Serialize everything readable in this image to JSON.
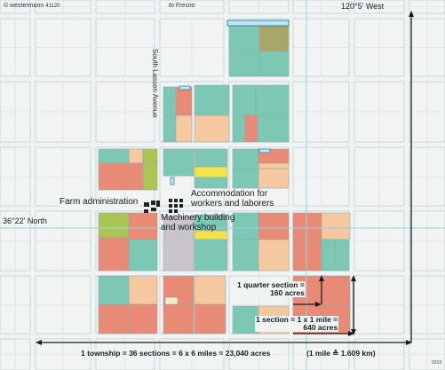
{
  "publisher": {
    "copyright": "© westermann",
    "map_id": "41120",
    "code": "0918"
  },
  "road_labels": {
    "to_fresno": "to Fresno",
    "avenue": "South Lassen Avenue"
  },
  "coordinates": {
    "longitude": "120°5' West",
    "latitude": "36°22' North"
  },
  "features": {
    "farm_administration": "Farm administration",
    "accommodation_line1": "Accommodation for",
    "accommodation_line2": "workers and laborers",
    "machinery_line1": "Machinery building",
    "machinery_line2": "and workshop"
  },
  "scale_notes": {
    "quarter_line1": "1 quarter section =",
    "quarter_line2": "160 acres",
    "section_line1": "1 section = 1 x 1 mile =",
    "section_line2": "640 acres",
    "township": "1 township = 36 sections = 6 x 6 miles = 23,040 acres",
    "mile": "(1 mile ≙ 1.609 km)"
  },
  "colors": {
    "background": "#eef3f4",
    "road": "#ffffff",
    "parcel_border": "#9aa5a7",
    "teal": "#7cc8b4",
    "salmon": "#e98a76",
    "peach": "#f6c8a0",
    "green": "#a9c654",
    "olive": "#a8a66a",
    "yellow": "#f3e34a",
    "gray": "#c9c3cc",
    "water": "#bfe6f3",
    "grid_line": "#8fd6dd",
    "arrow": "#1a1a1a"
  }
}
